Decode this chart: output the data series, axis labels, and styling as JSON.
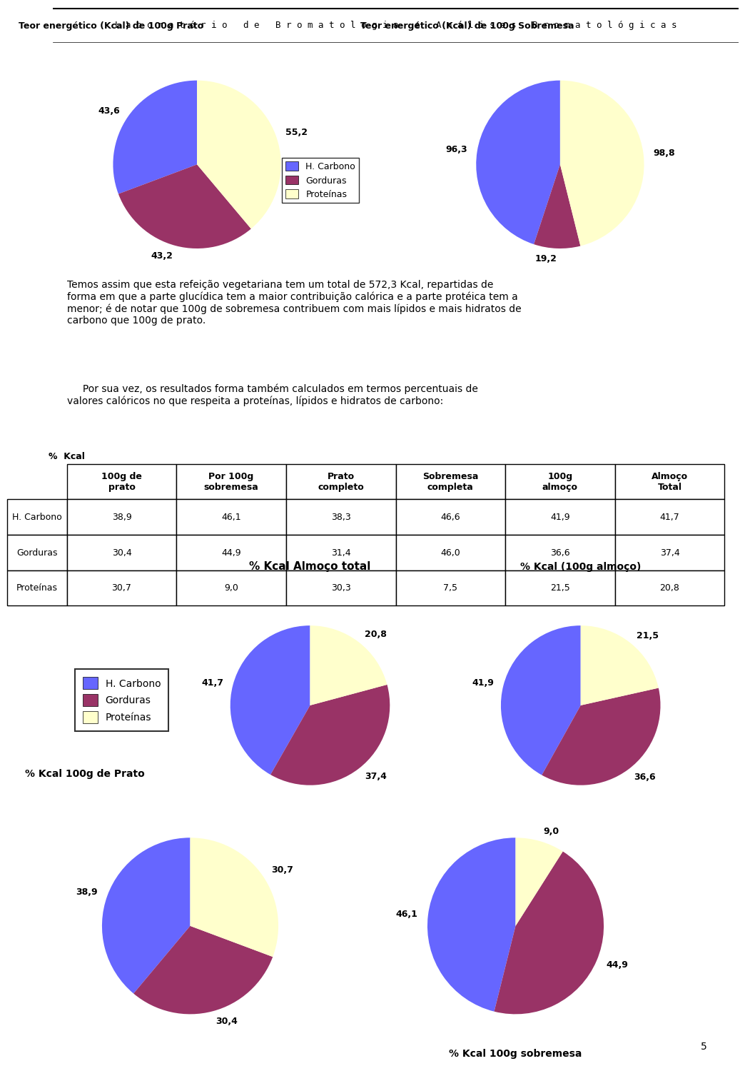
{
  "header": "L a b o r a t ó r i o   d e   B r o m a t o l o g i a   e   A n á l i s e s   B r o m a t o l ó g i c a s",
  "pie1_title": "Teor energético (Kcal) de 100g Prato",
  "pie1_values": [
    43.6,
    43.2,
    55.2
  ],
  "pie1_labels": [
    "43,6",
    "43,2",
    "55,2"
  ],
  "pie2_title": "Teor energético (Kcal) de 100g Sobremesa",
  "pie2_values": [
    96.3,
    19.2,
    98.8
  ],
  "pie2_labels": [
    "96,3",
    "19,2",
    "98,8"
  ],
  "pie3_title": "% Kcal Almoço total",
  "pie3_values": [
    41.7,
    37.4,
    20.8
  ],
  "pie3_labels": [
    "41,7",
    "37,4",
    "20,8"
  ],
  "pie4_title": "% Kcal (100g almoço)",
  "pie4_values": [
    41.9,
    36.6,
    21.5
  ],
  "pie4_labels": [
    "41,9",
    "36,6",
    "21,5"
  ],
  "pie5_title": "% Kcal 100g de Prato",
  "pie5_values": [
    38.9,
    30.4,
    30.7
  ],
  "pie5_labels": [
    "38,9",
    "30,4",
    "30,7"
  ],
  "pie6_title": "% Kcal 100g sobremesa",
  "pie6_values": [
    46.1,
    44.9,
    9.0
  ],
  "pie6_labels": [
    "46,1",
    "44,9",
    "9,0"
  ],
  "colors": [
    "#6666FF",
    "#993366",
    "#FFFFCC"
  ],
  "legend_labels": [
    "H. Carbono",
    "Gorduras",
    "Proteínas"
  ],
  "text_block1": "Temos assim que esta refeição vegetariana tem um total de 572,3 Kcal, repartidas de\nforma em que a parte glucídica tem a maior contribuição calórica e a parte protéica tem a\nmenor; é de notar que 100g de sobremesa contribuem com mais lípidos e mais hidratos de\ncarbono que 100g de prato.",
  "text_block2": "     Por sua vez, os resultados forma também calculados em termos percentuais de\nvalores calóricos no que respeita a proteínas, lípidos e hidratos de carbono:",
  "table_headers": [
    "%  Kcal",
    "100g de\nprato",
    "Por 100g\nsobremesa",
    "Prato\ncompleto",
    "Sobremesa\ncompleta",
    "100g\nalmoço",
    "Almoço\nTotal"
  ],
  "table_rows": [
    [
      "H. Carbono",
      "38,9",
      "46,1",
      "38,3",
      "46,6",
      "41,9",
      "41,7"
    ],
    [
      "Gorduras",
      "30,4",
      "44,9",
      "31,4",
      "46,0",
      "36,6",
      "37,4"
    ],
    [
      "Proteínas",
      "30,7",
      "9,0",
      "30,3",
      "7,5",
      "21,5",
      "20,8"
    ]
  ],
  "page_number": "5",
  "background_color": "#FFFFFF"
}
